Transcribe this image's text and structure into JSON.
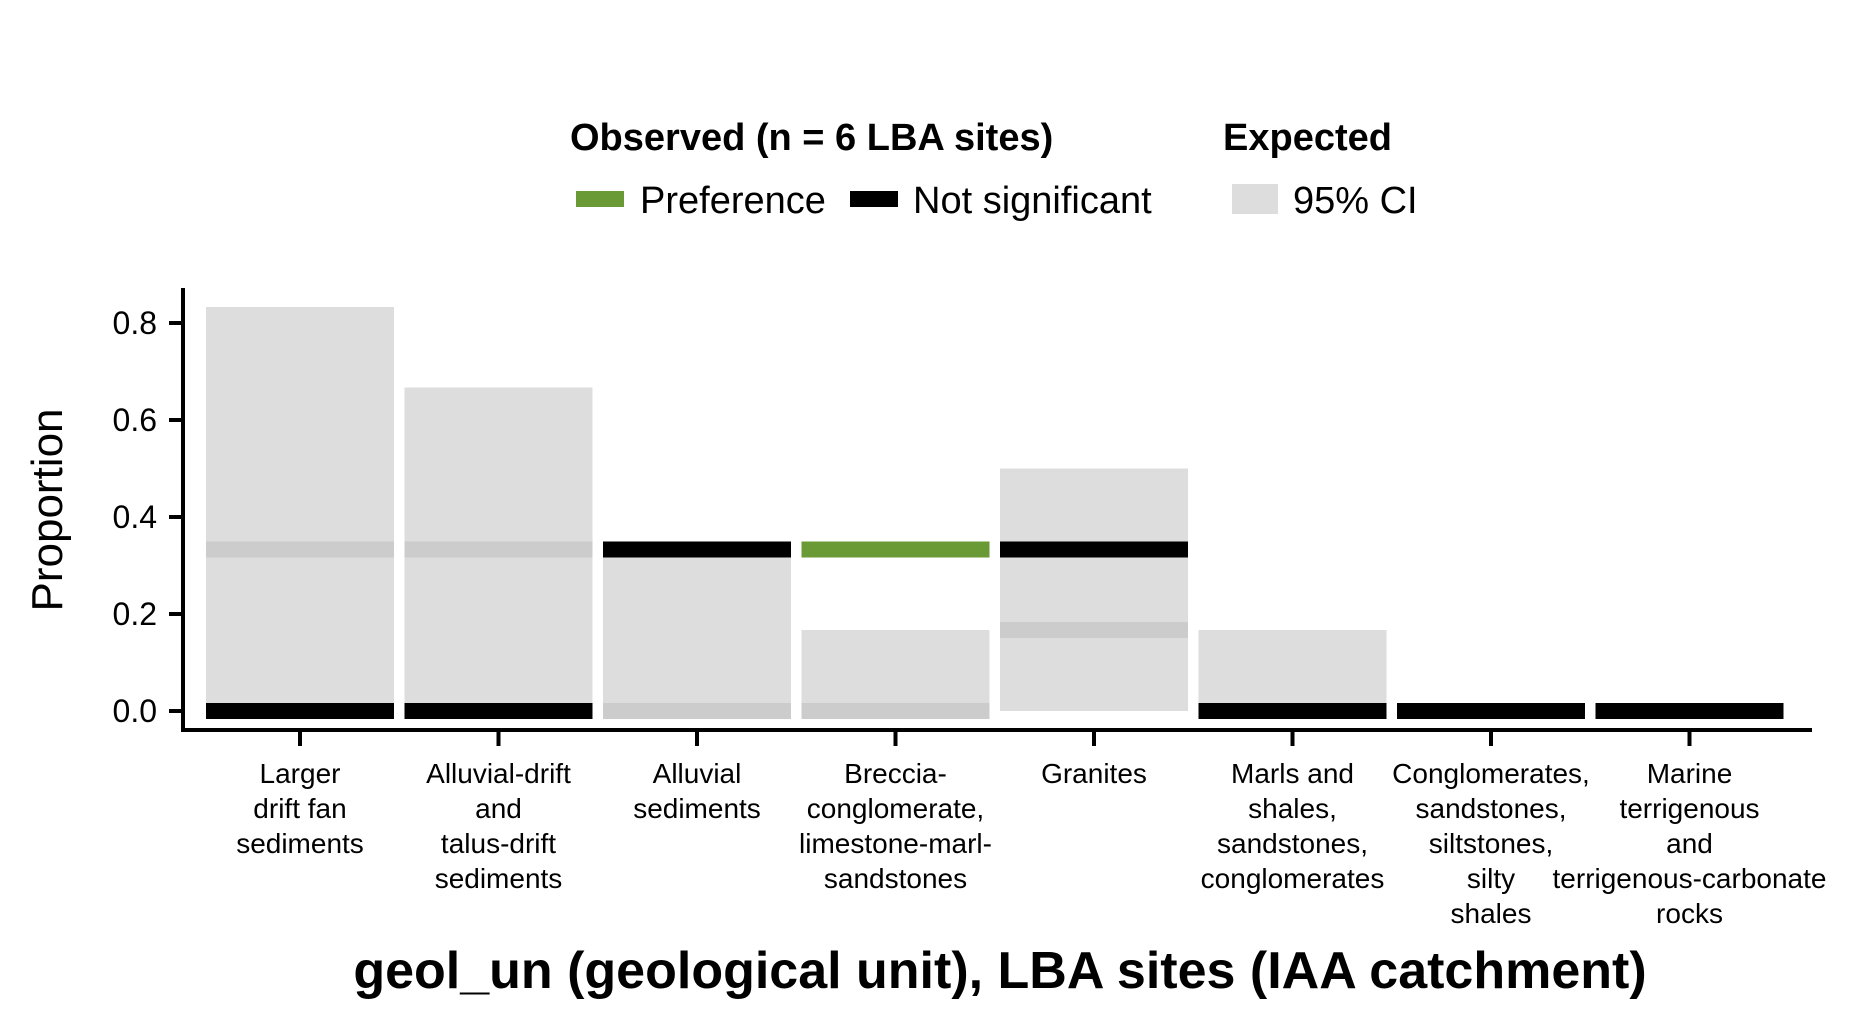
{
  "chart_data": {
    "type": "bar",
    "title": "",
    "xlabel": "geol_un (geological unit), LBA sites (IAA catchment)",
    "ylabel": "Proportion",
    "ylim": [
      0,
      0.85
    ],
    "yticks": [
      0.0,
      0.2,
      0.4,
      0.6,
      0.8
    ],
    "ytick_labels": [
      "0.0",
      "0.2",
      "0.4",
      "0.6",
      "0.8"
    ],
    "grid": false,
    "legend": {
      "placement": "top",
      "observed_title": "Observed (n = 6 LBA sites)",
      "expected_title": "Expected",
      "items": [
        {
          "label": "Preference",
          "color": "#6a9a35"
        },
        {
          "label": "Not significant",
          "color": "#000000"
        },
        {
          "label": "95% CI",
          "color": "#dddddd"
        }
      ]
    },
    "categories": [
      [
        "Larger",
        "drift fan",
        "sediments"
      ],
      [
        "Alluvial-drift",
        "and",
        "talus-drift",
        "sediments"
      ],
      [
        "Alluvial",
        "sediments"
      ],
      [
        "Breccia-",
        "conglomerate,",
        "limestone-marl-",
        "sandstones"
      ],
      [
        "Granites"
      ],
      [
        "Marls and",
        "shales,",
        "sandstones,",
        "conglomerates"
      ],
      [
        "Conglomerates,",
        "sandstones,",
        "siltstones,",
        "silty",
        "shales"
      ],
      [
        "Marine",
        "terrigenous",
        "and",
        "terrigenous-carbonate",
        "rocks"
      ]
    ],
    "expected_ci": [
      {
        "lower": 0.0,
        "upper": 0.833
      },
      {
        "lower": 0.0,
        "upper": 0.667
      },
      {
        "lower": 0.0,
        "upper": 0.333
      },
      {
        "lower": 0.0,
        "upper": 0.167
      },
      {
        "lower": 0.0,
        "upper": 0.5
      },
      {
        "lower": 0.0,
        "upper": 0.167
      },
      {
        "lower": 0.0,
        "upper": 0.0
      },
      {
        "lower": 0.0,
        "upper": 0.0
      }
    ],
    "expected_mean": [
      0.333,
      0.333,
      0.0,
      0.0,
      0.167,
      0.0,
      0.0,
      0.0
    ],
    "observed": [
      {
        "value": 0.0,
        "status": "Not significant"
      },
      {
        "value": 0.0,
        "status": "Not significant"
      },
      {
        "value": 0.333,
        "status": "Not significant"
      },
      {
        "value": 0.333,
        "status": "Preference"
      },
      {
        "value": 0.333,
        "status": "Not significant"
      },
      {
        "value": 0.0,
        "status": "Not significant"
      },
      {
        "value": 0.0,
        "status": "Not significant"
      },
      {
        "value": 0.0,
        "status": "Not significant"
      }
    ],
    "colors": {
      "ci_fill": "#dddddd",
      "expected_mean": "#cccccc",
      "not_significant": "#000000",
      "preference": "#6a9a35"
    }
  }
}
